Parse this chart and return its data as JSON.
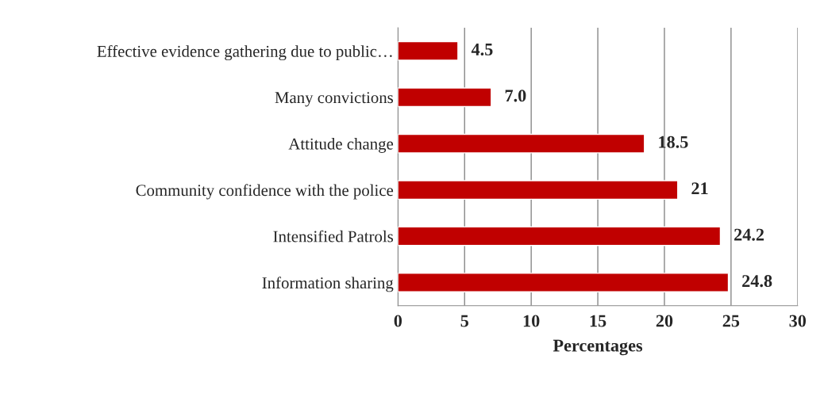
{
  "chart_data": {
    "type": "bar",
    "orientation": "horizontal",
    "categories": [
      "Effective evidence gathering due to public…",
      "Many convictions",
      "Attitude change",
      "Community confidence with the police",
      "Intensified Patrols",
      "Information sharing"
    ],
    "values": [
      4.5,
      7.0,
      18.5,
      21,
      24.2,
      24.8
    ],
    "value_labels": [
      "4.5",
      "7.0",
      "18.5",
      "21",
      "24.2",
      "24.8"
    ],
    "color": "#c00000",
    "xlabel": "Percentages",
    "xlim": [
      0,
      30
    ],
    "xticks": [
      0,
      5,
      10,
      15,
      20,
      25,
      30
    ],
    "grid": "x",
    "legend": false
  }
}
